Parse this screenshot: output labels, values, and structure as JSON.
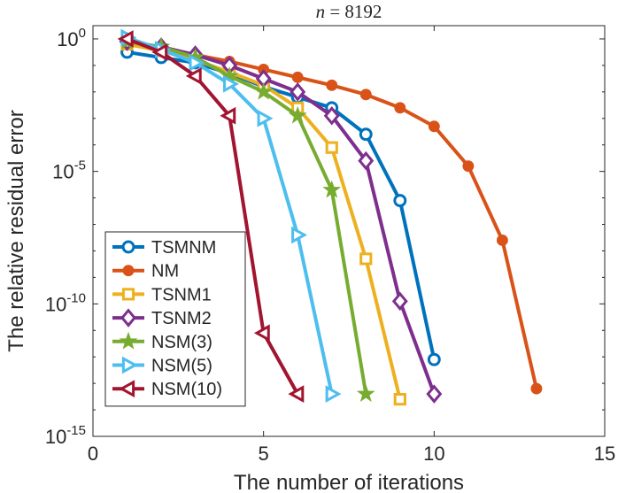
{
  "chart_data": {
    "type": "line",
    "title": {
      "var": "n",
      "eq": " = ",
      "value": "8192"
    },
    "xlabel": "The number of iterations",
    "ylabel": "The relative residual error",
    "xlim": [
      0,
      15
    ],
    "ylim_log10": [
      -15,
      0.5
    ],
    "y_scale": "log",
    "grid": false,
    "legend_position": "bottom-left",
    "x_ticks": [
      {
        "value": 0,
        "label": "0"
      },
      {
        "value": 5,
        "label": "5"
      },
      {
        "value": 10,
        "label": "10"
      },
      {
        "value": 15,
        "label": "15"
      }
    ],
    "y_ticks": [
      {
        "exp": 0,
        "base": "10",
        "sup": "0"
      },
      {
        "exp": -5,
        "base": "10",
        "sup": "-5"
      },
      {
        "exp": -10,
        "base": "10",
        "sup": "-10"
      },
      {
        "exp": -15,
        "base": "10",
        "sup": "-15"
      }
    ],
    "series": [
      {
        "name": "TSMNM",
        "color": "#0072BD",
        "marker": "circle-open",
        "x": [
          1,
          2,
          3,
          4,
          5,
          6,
          7,
          8,
          9,
          10
        ],
        "log10_y": [
          -0.5,
          -0.7,
          -0.9,
          -1.3,
          -1.8,
          -2.2,
          -2.6,
          -3.6,
          -6.1,
          -12.1
        ]
      },
      {
        "name": "NM",
        "color": "#D95319",
        "marker": "circle-filled",
        "x": [
          1,
          2,
          3,
          4,
          5,
          6,
          7,
          8,
          9,
          10,
          11,
          12,
          13
        ],
        "log10_y": [
          -0.15,
          -0.35,
          -0.6,
          -0.85,
          -1.15,
          -1.45,
          -1.75,
          -2.1,
          -2.6,
          -3.3,
          -4.8,
          -7.6,
          -13.2
        ],
        "ylim_note": ""
      },
      {
        "name": "TSNM1",
        "color": "#EDB120",
        "marker": "square-open",
        "x": [
          1,
          2,
          3,
          4,
          5,
          6,
          7,
          8,
          9
        ],
        "log10_y": [
          -0.2,
          -0.45,
          -0.8,
          -1.25,
          -1.75,
          -2.6,
          -4.1,
          -8.3,
          -13.6
        ]
      },
      {
        "name": "TSNM2",
        "color": "#7E2F8E",
        "marker": "diamond-open",
        "x": [
          1,
          2,
          3,
          4,
          5,
          6,
          7,
          8,
          9,
          10
        ],
        "log10_y": [
          -0.1,
          -0.3,
          -0.6,
          -1.0,
          -1.5,
          -2.0,
          -2.9,
          -4.6,
          -9.9,
          -13.4
        ]
      },
      {
        "name": "NSM(3)",
        "color": "#77AC30",
        "marker": "star-filled",
        "x": [
          1,
          2,
          3,
          4,
          5,
          6,
          7,
          8
        ],
        "log10_y": [
          -0.1,
          -0.3,
          -0.7,
          -1.4,
          -2.0,
          -2.9,
          -5.7,
          -13.4
        ]
      },
      {
        "name": "NSM(5)",
        "color": "#4DBEEE",
        "marker": "triangle-right-open",
        "x": [
          1,
          2,
          3,
          4,
          5,
          6,
          7
        ],
        "log10_y": [
          0.05,
          -0.4,
          -0.9,
          -1.7,
          -3.0,
          -7.4,
          -13.4
        ]
      },
      {
        "name": "NSM(10)",
        "color": "#A2142F",
        "marker": "triangle-left-open",
        "x": [
          1,
          2,
          3,
          4,
          5,
          6
        ],
        "log10_y": [
          0.0,
          -0.5,
          -1.4,
          -2.9,
          -11.1,
          -13.4
        ]
      }
    ]
  }
}
